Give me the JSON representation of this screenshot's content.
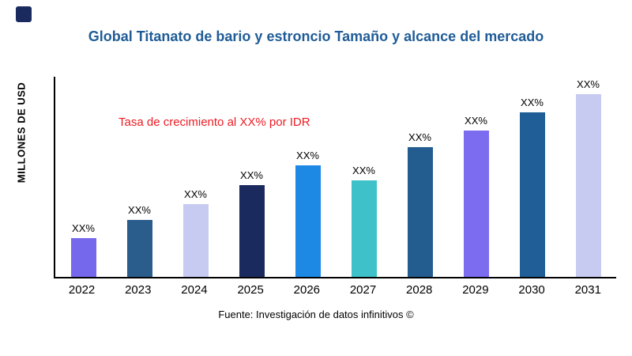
{
  "page": {
    "title": "Global Titanato de bario y estroncio Tamaño y alcance del mercado",
    "ylabel": "MILLONES DE USD",
    "annotation": "Tasa de crecimiento al XX% por IDR",
    "footer": "Fuente: Investigación de datos infinitivos ©"
  },
  "chart_data": {
    "type": "bar",
    "title": "Global Titanato de bario y estroncio Tamaño y alcance del mercado",
    "categories": [
      "2022",
      "2023",
      "2024",
      "2025",
      "2026",
      "2027",
      "2028",
      "2029",
      "2030",
      "2031"
    ],
    "values": [
      21,
      31,
      40,
      50,
      61,
      53,
      71,
      80,
      90,
      100
    ],
    "value_labels": [
      "XX%",
      "XX%",
      "XX%",
      "XX%",
      "XX%",
      "XX%",
      "XX%",
      "XX%",
      "XX%",
      "XX%"
    ],
    "bar_colors": [
      "#7668ec",
      "#2b5d8c",
      "#c7cbf1",
      "#1b2a5e",
      "#1e88e5",
      "#3fc1c9",
      "#235d8f",
      "#7b6cf0",
      "#1f5e96",
      "#c7cbf1"
    ],
    "xlabel": "",
    "ylabel": "MILLONES DE USD",
    "ylim": [
      0,
      100
    ],
    "grid": false,
    "legend": false,
    "annotation": "Tasa de crecimiento al XX% por IDR",
    "note": "values are relative bar heights in % of tallest bar; actual figures masked as XX% in source image"
  },
  "colors": {
    "title": "#1f5c97",
    "annotation": "#ed1c24",
    "axis": "#000000",
    "logo": "#1b2a5e"
  }
}
